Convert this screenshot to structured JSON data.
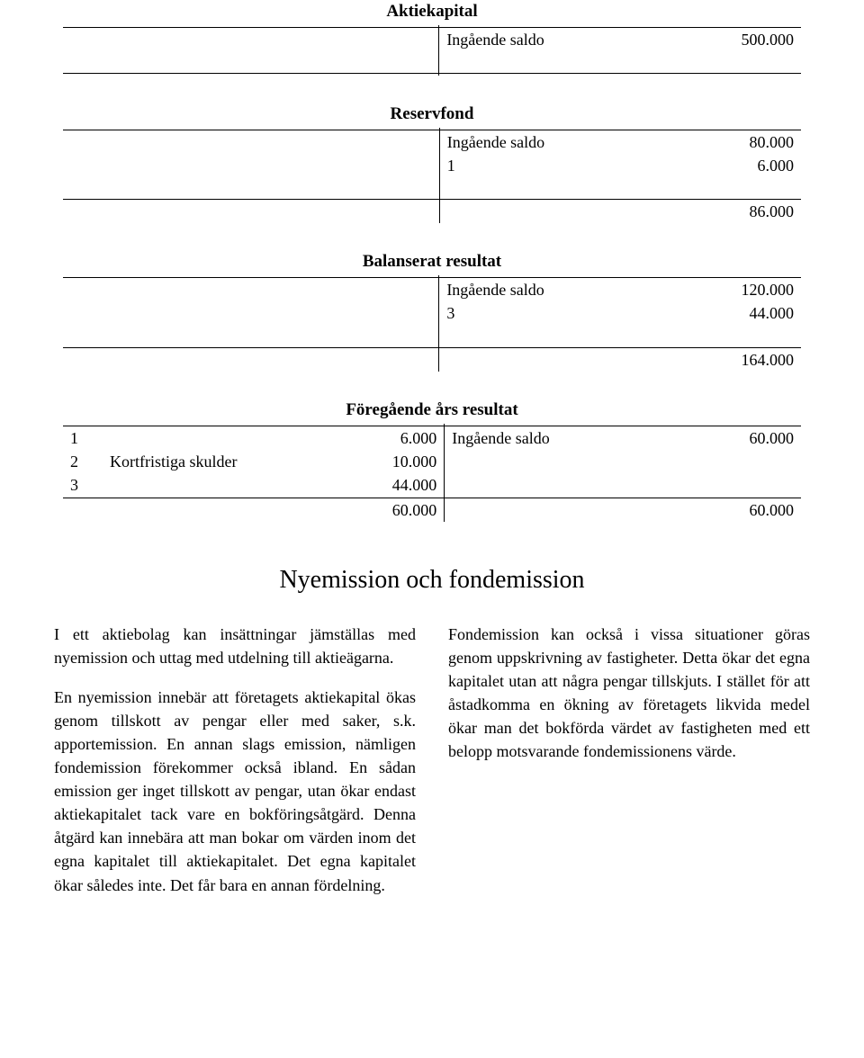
{
  "accounts": {
    "aktiekapital": {
      "title": "Aktiekapital",
      "r1_label": "Ingående saldo",
      "r1_val": "500.000"
    },
    "reservfond": {
      "title": "Reservfond",
      "r1_label": "Ingående saldo",
      "r1_val": "80.000",
      "r2_ref": "1",
      "r2_val": "6.000",
      "sum_right": "86.000"
    },
    "balanserat": {
      "title": "Balanserat resultat",
      "r1_label": "Ingående saldo",
      "r1_val": "120.000",
      "r2_ref": "3",
      "r2_val": "44.000",
      "sum_right": "164.000"
    },
    "foregaende": {
      "title": "Föregående års resultat",
      "l1_ref": "1",
      "l1_val": "6.000",
      "l2_ref": "2",
      "l2_label": "Kortfristiga skulder",
      "l2_val": "10.000",
      "l3_ref": "3",
      "l3_val": "44.000",
      "sum_left": "60.000",
      "r1_label": "Ingående saldo",
      "r1_val": "60.000",
      "sum_right": "60.000"
    }
  },
  "section_title": "Nyemission och fondemission",
  "body": {
    "p1": "I ett aktiebolag kan insättningar jämställas med nyemission och uttag med utdelning till aktieägarna.",
    "p2": "En nyemission innebär att företagets aktie­kapital ökas genom tillskott av pengar eller med saker, s.k. apportemission. En annan slags emission, nämligen fondemission före­kommer också ibland. En sådan emission ger inget tillskott av pengar, utan ökar endast aktiekapitalet tack vare en bokföringsåtgärd. Denna åtgärd kan innebära att man bokar om värden inom det egna kapitalet till aktie­kapitalet. Det egna kapitalet ökar således inte. Det får bara en annan fördelning.",
    "p3": "Fondemission kan också i vissa situationer göras genom uppskrivning av fastigheter. Detta ökar det egna kapitalet utan att några pengar tillskjuts. I stället för att åstadkomma en ökning av företagets likvida medel ökar man det bokförda värdet av fastigheten med ett belopp motsvarande fondemissionens värde."
  }
}
